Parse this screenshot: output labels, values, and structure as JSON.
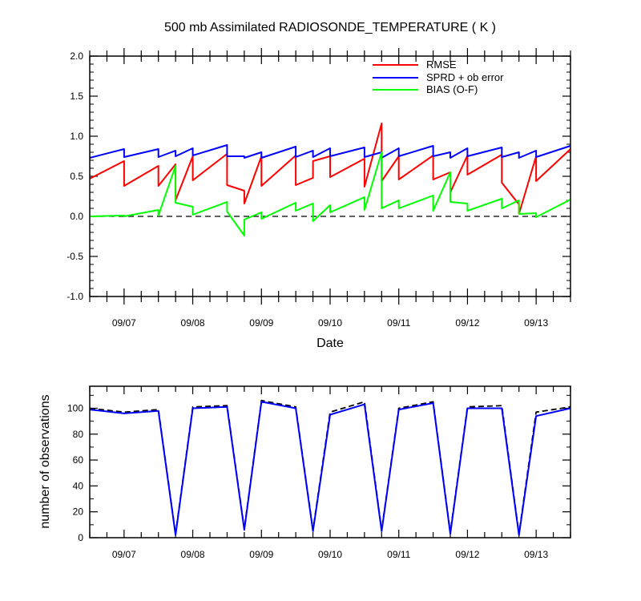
{
  "chart_data": [
    {
      "type": "line",
      "title": "500 mb Assimilated RADIOSONDE_TEMPERATURE ( K )",
      "xlabel": "Date",
      "ylabel": "",
      "ylim": [
        -1.0,
        2.0
      ],
      "yticks": [
        "2.0",
        "1.5",
        "1.0",
        "0.5",
        "0.0",
        "-0.5",
        "-1.0"
      ],
      "xlim": [
        6.5,
        13.5
      ],
      "xticks": [
        {
          "x": 7,
          "label": "09/07"
        },
        {
          "x": 8,
          "label": "09/08"
        },
        {
          "x": 9,
          "label": "09/09"
        },
        {
          "x": 10,
          "label": "09/10"
        },
        {
          "x": 11,
          "label": "09/11"
        },
        {
          "x": 12,
          "label": "09/12"
        },
        {
          "x": 13,
          "label": "09/13"
        }
      ],
      "legend_position": "top-right",
      "series": [
        {
          "name": "RMSE",
          "color": "#ff0000",
          "x": [
            6.5,
            7.0,
            7.0,
            7.5,
            7.5,
            7.75,
            7.75,
            8.0,
            8.0,
            8.5,
            8.5,
            8.75,
            8.75,
            9.0,
            9.0,
            9.5,
            9.5,
            9.75,
            9.75,
            10.0,
            10.0,
            10.5,
            10.5,
            10.75,
            10.75,
            11.0,
            11.0,
            11.5,
            11.5,
            11.75,
            11.75,
            12.0,
            12.0,
            12.5,
            12.5,
            12.75,
            12.75,
            13.0,
            13.0,
            13.5
          ],
          "y": [
            0.47,
            0.69,
            0.38,
            0.63,
            0.38,
            0.65,
            0.2,
            0.75,
            0.45,
            0.78,
            0.39,
            0.32,
            0.16,
            0.75,
            0.38,
            0.76,
            0.39,
            0.48,
            0.69,
            0.75,
            0.49,
            0.72,
            0.37,
            1.16,
            0.44,
            0.75,
            0.46,
            0.76,
            0.46,
            0.55,
            0.3,
            0.76,
            0.52,
            0.77,
            0.42,
            0.15,
            0.03,
            0.75,
            0.44,
            0.84
          ]
        },
        {
          "name": "SPRD + ob error",
          "color": "#0000ff",
          "x": [
            6.5,
            7.0,
            7.0,
            7.5,
            7.5,
            7.75,
            7.75,
            8.0,
            8.0,
            8.5,
            8.5,
            8.75,
            8.75,
            9.0,
            9.0,
            9.5,
            9.5,
            9.75,
            9.75,
            10.0,
            10.0,
            10.5,
            10.5,
            10.75,
            10.75,
            11.0,
            11.0,
            11.5,
            11.5,
            11.75,
            11.75,
            12.0,
            12.0,
            12.5,
            12.5,
            12.75,
            12.75,
            13.0,
            13.0,
            13.5
          ],
          "y": [
            0.73,
            0.84,
            0.74,
            0.84,
            0.74,
            0.82,
            0.75,
            0.85,
            0.76,
            0.89,
            0.75,
            0.75,
            0.73,
            0.8,
            0.73,
            0.87,
            0.74,
            0.82,
            0.74,
            0.85,
            0.75,
            0.86,
            0.74,
            0.8,
            0.73,
            0.85,
            0.75,
            0.88,
            0.75,
            0.8,
            0.73,
            0.85,
            0.75,
            0.86,
            0.74,
            0.8,
            0.73,
            0.82,
            0.74,
            0.88
          ]
        },
        {
          "name": "BIAS (O-F)",
          "color": "#00ff00",
          "x": [
            6.5,
            7.0,
            7.0,
            7.5,
            7.5,
            7.75,
            7.75,
            8.0,
            8.0,
            8.5,
            8.5,
            8.75,
            8.75,
            9.0,
            9.0,
            9.5,
            9.5,
            9.75,
            9.75,
            10.0,
            10.0,
            10.5,
            10.5,
            10.75,
            10.75,
            11.0,
            11.0,
            11.5,
            11.5,
            11.75,
            11.75,
            12.0,
            12.0,
            12.5,
            12.5,
            12.75,
            12.75,
            13.0,
            13.0,
            13.5
          ],
          "y": [
            0.0,
            0.01,
            0.0,
            0.08,
            0.01,
            0.63,
            0.17,
            0.12,
            0.02,
            0.18,
            0.06,
            -0.24,
            -0.04,
            0.05,
            -0.03,
            0.17,
            0.07,
            0.16,
            -0.06,
            0.14,
            0.05,
            0.24,
            0.08,
            0.8,
            0.1,
            0.2,
            0.1,
            0.26,
            0.07,
            0.55,
            0.18,
            0.16,
            0.07,
            0.22,
            0.1,
            0.2,
            0.03,
            0.04,
            -0.01,
            0.21
          ]
        }
      ],
      "reference_line": {
        "y": 0,
        "style": "dashed"
      }
    },
    {
      "type": "line",
      "title": "",
      "xlabel": "",
      "ylabel": "number of observations",
      "ylim": [
        0,
        117
      ],
      "yticks": [
        "0",
        "20",
        "40",
        "60",
        "80",
        "100"
      ],
      "xlim": [
        6.5,
        13.5
      ],
      "xticks": [
        {
          "x": 7,
          "label": "09/07"
        },
        {
          "x": 8,
          "label": "09/08"
        },
        {
          "x": 9,
          "label": "09/09"
        },
        {
          "x": 10,
          "label": "09/10"
        },
        {
          "x": 11,
          "label": "09/11"
        },
        {
          "x": 12,
          "label": "09/12"
        },
        {
          "x": 13,
          "label": "09/13"
        }
      ],
      "series": [
        {
          "style": "dashed",
          "color": "#000000",
          "x": [
            6.5,
            7.0,
            7.5,
            7.75,
            8.0,
            8.5,
            8.75,
            9.0,
            9.5,
            9.75,
            10.0,
            10.5,
            10.75,
            11.0,
            11.5,
            11.75,
            12.0,
            12.5,
            12.75,
            13.0,
            13.5
          ],
          "y": [
            100,
            97,
            99,
            3,
            101,
            102,
            7,
            106,
            101,
            6,
            97,
            105,
            6,
            100,
            105,
            4,
            101,
            102,
            3,
            97,
            101
          ]
        },
        {
          "style": "solid",
          "color": "#0000ff",
          "x": [
            6.5,
            7.0,
            7.5,
            7.75,
            8.0,
            8.5,
            8.75,
            9.0,
            9.5,
            9.75,
            10.0,
            10.5,
            10.75,
            11.0,
            11.5,
            11.75,
            12.0,
            12.5,
            12.75,
            13.0,
            13.5
          ],
          "y": [
            99,
            96,
            98,
            2,
            100,
            101,
            6,
            105,
            100,
            5,
            95,
            103,
            5,
            99,
            104,
            3,
            100,
            100,
            2,
            94,
            100
          ]
        }
      ]
    }
  ]
}
